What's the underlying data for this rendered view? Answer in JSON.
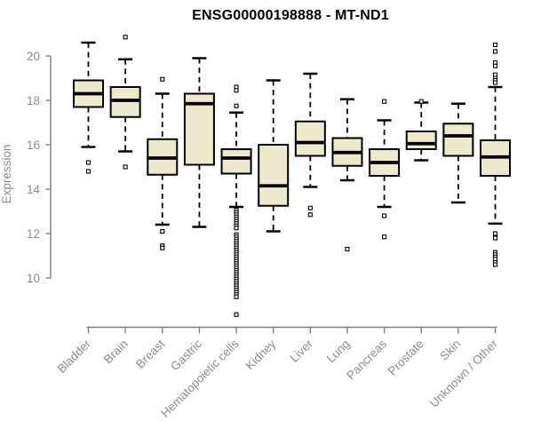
{
  "title": "ENSG00000198888 - MT-ND1",
  "colors": {
    "background": "#ffffff",
    "box_fill": "#EEE8CD",
    "box_stroke": "#000000",
    "median": "#000000",
    "whisker": "#000000",
    "outlier_fill": "#ffffff",
    "axis": "#7f7f7f",
    "tick_text": "#8c8c8c",
    "title_text": "#000000"
  },
  "chart_data": {
    "type": "box",
    "title": "ENSG00000198888 - MT-ND1",
    "xlabel": "",
    "ylabel": "Expression",
    "grid": false,
    "legend": "none",
    "ylim": [
      8.2,
      21.0
    ],
    "yticks": [
      10,
      12,
      14,
      16,
      18,
      20
    ],
    "categories": [
      "Bladder",
      "Brain",
      "Breast",
      "Gastric",
      "Hematopoietic cells",
      "Kidney",
      "Liver",
      "Lung",
      "Pancreas",
      "Prostate",
      "Skin",
      "Unknown / Other"
    ],
    "series": [
      {
        "name": "Bladder",
        "whislo": 15.9,
        "q1": 17.7,
        "med": 18.3,
        "q3": 18.9,
        "whishi": 20.6,
        "outliers": [
          15.2,
          14.8
        ]
      },
      {
        "name": "Brain",
        "whislo": 15.7,
        "q1": 17.25,
        "med": 18.0,
        "q3": 18.6,
        "whishi": 19.85,
        "outliers": [
          20.85,
          15.0
        ]
      },
      {
        "name": "Breast",
        "whislo": 12.4,
        "q1": 14.65,
        "med": 15.4,
        "q3": 16.25,
        "whishi": 18.3,
        "outliers": [
          18.95,
          12.1,
          11.45,
          11.35
        ]
      },
      {
        "name": "Gastric",
        "whislo": 12.3,
        "q1": 15.1,
        "med": 17.85,
        "q3": 18.3,
        "whishi": 19.9,
        "outliers": []
      },
      {
        "name": "Hematopoietic cells",
        "whislo": 13.2,
        "q1": 14.7,
        "med": 15.4,
        "q3": 15.8,
        "whishi": 17.45,
        "outliers": [
          18.6,
          18.45,
          17.75,
          13.05,
          12.95,
          12.85,
          12.75,
          12.65,
          12.55,
          12.45,
          12.35,
          12.25,
          11.95,
          11.85,
          11.75,
          11.65,
          11.55,
          11.45,
          11.35,
          11.25,
          11.15,
          11.05,
          10.95,
          10.85,
          10.75,
          10.65,
          10.55,
          10.45,
          10.35,
          10.25,
          10.15,
          10.05,
          9.95,
          9.85,
          9.75,
          9.65,
          9.55,
          9.45,
          9.35,
          9.25,
          9.15,
          8.35
        ]
      },
      {
        "name": "Kidney",
        "whislo": 12.1,
        "q1": 13.25,
        "med": 14.15,
        "q3": 16.0,
        "whishi": 18.9,
        "outliers": []
      },
      {
        "name": "Liver",
        "whislo": 14.1,
        "q1": 15.5,
        "med": 16.1,
        "q3": 17.05,
        "whishi": 19.2,
        "outliers": [
          13.15,
          12.85
        ]
      },
      {
        "name": "Lung",
        "whislo": 14.4,
        "q1": 15.05,
        "med": 15.65,
        "q3": 16.3,
        "whishi": 18.05,
        "outliers": [
          11.3
        ]
      },
      {
        "name": "Pancreas",
        "whislo": 13.2,
        "q1": 14.6,
        "med": 15.2,
        "q3": 15.8,
        "whishi": 17.1,
        "outliers": [
          17.95,
          12.8,
          11.85
        ]
      },
      {
        "name": "Prostate",
        "whislo": 15.3,
        "q1": 15.8,
        "med": 16.05,
        "q3": 16.6,
        "whishi": 17.9,
        "outliers": [
          17.95
        ]
      },
      {
        "name": "Skin",
        "whislo": 13.4,
        "q1": 15.5,
        "med": 16.4,
        "q3": 16.95,
        "whishi": 17.85,
        "outliers": []
      },
      {
        "name": "Unknown / Other",
        "whislo": 12.45,
        "q1": 14.6,
        "med": 15.45,
        "q3": 16.2,
        "whishi": 18.6,
        "outliers": [
          20.5,
          20.2,
          19.7,
          19.55,
          19.15,
          19.0,
          18.9,
          18.8,
          12.0,
          11.8,
          11.15,
          11.05,
          10.95,
          10.85,
          10.7,
          10.6
        ]
      }
    ]
  }
}
